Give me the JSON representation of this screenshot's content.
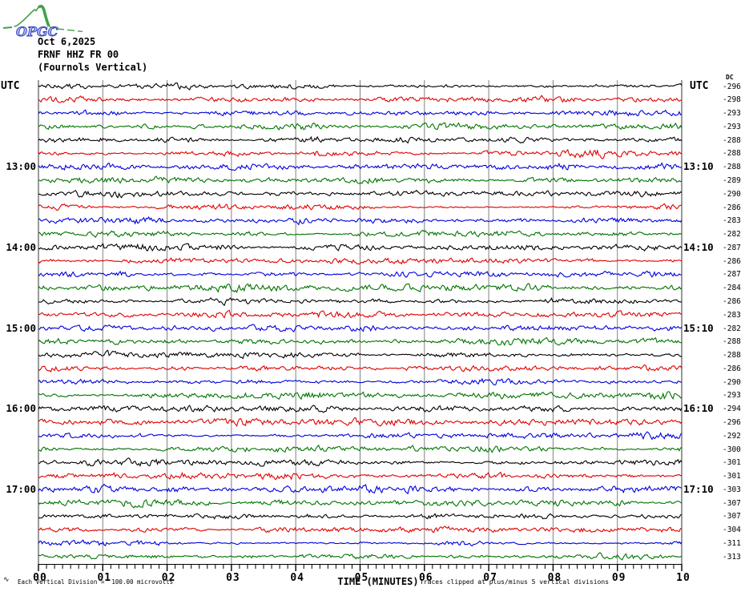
{
  "logo": {
    "text": "OPGC",
    "curve_color": "#44a048",
    "text_fill": "#a8b4ea",
    "text_outline": "#2f3fc0"
  },
  "header": {
    "date": "Oct 6,2025",
    "station": "FRNF HHZ FR 00",
    "description": "(Fournols Vertical)"
  },
  "axis": {
    "left_title": "UTC",
    "right_title": "UTC",
    "dc_title": "DC",
    "x_title": "TIME (MINUTES)"
  },
  "footer": {
    "scale_glyph": "∿",
    "scale_note": "Each Vertical Division =  100.00 microvolts",
    "clip_note": "Traces clipped at plus/minus 5 vertical divisions"
  },
  "chart_data": {
    "type": "line",
    "subtype": "helicorder-seismogram",
    "x_axis": {
      "label": "TIME (MINUTES)",
      "range_minutes": [
        0,
        10
      ],
      "tick_labels": [
        "00",
        "01",
        "02",
        "03",
        "04",
        "05",
        "06",
        "07",
        "08",
        "09",
        "10"
      ],
      "minor_ticks_per_major": 8
    },
    "y_axis": {
      "left_label": "UTC",
      "right_label": "UTC",
      "right_value_column": "DC"
    },
    "minutes_per_row": 10,
    "start_utc": "12:00",
    "end_utc": "18:00",
    "scale": {
      "microvolts_per_vertical_division": 100.0,
      "clip_divisions": 5
    },
    "grid_color": "#808080",
    "edge_color": "#333333",
    "trace_colors": {
      "black": "#000000",
      "red": "#e00000",
      "blue": "#0000dd",
      "green": "#007400"
    },
    "color_cycle": [
      "black",
      "red",
      "blue",
      "green"
    ],
    "left_hour_labels": [
      {
        "row": 6,
        "label": "13:00"
      },
      {
        "row": 12,
        "label": "14:00"
      },
      {
        "row": 18,
        "label": "15:00"
      },
      {
        "row": 24,
        "label": "16:00"
      },
      {
        "row": 30,
        "label": "17:00"
      }
    ],
    "right_hour_labels": [
      {
        "row": 6,
        "label": "13:10"
      },
      {
        "row": 12,
        "label": "14:10"
      },
      {
        "row": 18,
        "label": "15:10"
      },
      {
        "row": 24,
        "label": "16:10"
      },
      {
        "row": 30,
        "label": "17:10"
      }
    ],
    "rows": [
      {
        "start_utc": "12:00",
        "color": "black",
        "dc": -296
      },
      {
        "start_utc": "12:10",
        "color": "red",
        "dc": -298
      },
      {
        "start_utc": "12:20",
        "color": "blue",
        "dc": -293
      },
      {
        "start_utc": "12:30",
        "color": "green",
        "dc": -293
      },
      {
        "start_utc": "12:40",
        "color": "black",
        "dc": -288
      },
      {
        "start_utc": "12:50",
        "color": "red",
        "dc": -288
      },
      {
        "start_utc": "13:00",
        "color": "blue",
        "dc": -288
      },
      {
        "start_utc": "13:10",
        "color": "green",
        "dc": -289
      },
      {
        "start_utc": "13:20",
        "color": "black",
        "dc": -290
      },
      {
        "start_utc": "13:30",
        "color": "red",
        "dc": -286
      },
      {
        "start_utc": "13:40",
        "color": "blue",
        "dc": -283
      },
      {
        "start_utc": "13:50",
        "color": "green",
        "dc": -282
      },
      {
        "start_utc": "14:00",
        "color": "black",
        "dc": -287
      },
      {
        "start_utc": "14:10",
        "color": "red",
        "dc": -286
      },
      {
        "start_utc": "14:20",
        "color": "blue",
        "dc": -287
      },
      {
        "start_utc": "14:30",
        "color": "green",
        "dc": -284
      },
      {
        "start_utc": "14:40",
        "color": "black",
        "dc": -286
      },
      {
        "start_utc": "14:50",
        "color": "red",
        "dc": -283
      },
      {
        "start_utc": "15:00",
        "color": "blue",
        "dc": -282
      },
      {
        "start_utc": "15:10",
        "color": "green",
        "dc": -288
      },
      {
        "start_utc": "15:20",
        "color": "black",
        "dc": -288
      },
      {
        "start_utc": "15:30",
        "color": "red",
        "dc": -286
      },
      {
        "start_utc": "15:40",
        "color": "blue",
        "dc": -290
      },
      {
        "start_utc": "15:50",
        "color": "green",
        "dc": -293
      },
      {
        "start_utc": "16:00",
        "color": "black",
        "dc": -294
      },
      {
        "start_utc": "16:10",
        "color": "red",
        "dc": -296
      },
      {
        "start_utc": "16:20",
        "color": "blue",
        "dc": -292
      },
      {
        "start_utc": "16:30",
        "color": "green",
        "dc": -300
      },
      {
        "start_utc": "16:40",
        "color": "black",
        "dc": -301
      },
      {
        "start_utc": "16:50",
        "color": "red",
        "dc": -301
      },
      {
        "start_utc": "17:00",
        "color": "blue",
        "dc": -303
      },
      {
        "start_utc": "17:10",
        "color": "green",
        "dc": -307
      },
      {
        "start_utc": "17:20",
        "color": "black",
        "dc": -307
      },
      {
        "start_utc": "17:30",
        "color": "red",
        "dc": -304
      },
      {
        "start_utc": "17:40",
        "color": "blue",
        "dc": -311
      },
      {
        "start_utc": "17:50",
        "color": "green",
        "dc": -313
      }
    ],
    "noise_seed": 20251006
  }
}
